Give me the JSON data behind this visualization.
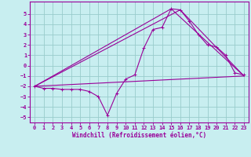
{
  "xlabel": "Windchill (Refroidissement éolien,°C)",
  "bg_color": "#c8eef0",
  "grid_color": "#99cccc",
  "line_color": "#990099",
  "xlim": [
    -0.5,
    23.5
  ],
  "ylim": [
    -5.5,
    6.2
  ],
  "xticks": [
    0,
    1,
    2,
    3,
    4,
    5,
    6,
    7,
    8,
    9,
    10,
    11,
    12,
    13,
    14,
    15,
    16,
    17,
    18,
    19,
    20,
    21,
    22,
    23
  ],
  "yticks": [
    -5,
    -4,
    -3,
    -2,
    -1,
    0,
    1,
    2,
    3,
    4,
    5
  ],
  "series1_x": [
    0,
    1,
    2,
    3,
    4,
    5,
    6,
    7,
    8,
    9,
    10,
    11,
    12,
    13,
    14,
    15,
    16,
    17,
    18,
    19,
    20,
    21,
    22,
    23
  ],
  "series1_y": [
    -2.0,
    -2.2,
    -2.2,
    -2.3,
    -2.3,
    -2.3,
    -2.5,
    -3.0,
    -4.8,
    -2.7,
    -1.3,
    -0.9,
    1.7,
    3.5,
    3.7,
    5.5,
    5.4,
    4.3,
    3.0,
    2.0,
    1.8,
    1.0,
    -0.7,
    -0.9
  ],
  "series2_x": [
    0,
    23
  ],
  "series2_y": [
    -2.0,
    -1.0
  ],
  "series3_x": [
    0,
    15,
    23
  ],
  "series3_y": [
    -2.0,
    5.5,
    -1.0
  ],
  "series4_x": [
    0,
    16,
    23
  ],
  "series4_y": [
    -2.0,
    5.4,
    -1.0
  ],
  "xlabel_fontsize": 5.5,
  "tick_fontsize": 5.0
}
